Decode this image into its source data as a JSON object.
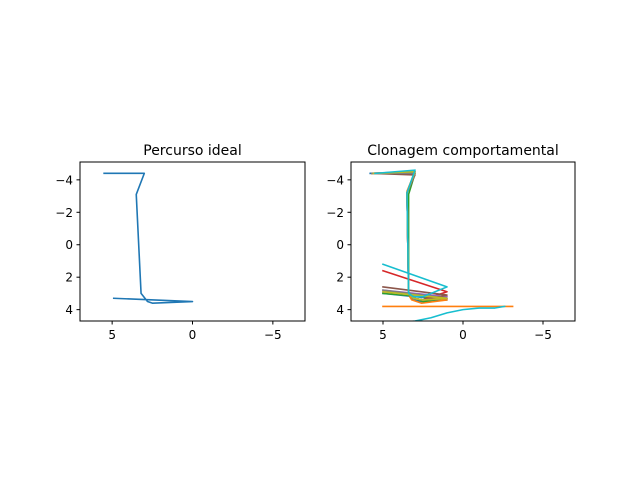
{
  "figure": {
    "background": "#ffffff"
  },
  "chart_data": [
    {
      "type": "line",
      "title": "Percurso ideal",
      "xlabel": "",
      "ylabel": "",
      "xlim": [
        7,
        -7
      ],
      "ylim": [
        4.7,
        -5.1
      ],
      "x_inverted": true,
      "y_inverted": true,
      "xticks": [
        5,
        0,
        -5
      ],
      "xtick_labels": [
        "5",
        "0",
        "−5"
      ],
      "yticks": [
        -4,
        -2,
        0,
        2,
        4
      ],
      "ytick_labels": [
        "−4",
        "−2",
        "0",
        "2",
        "4"
      ],
      "grid": false,
      "series": [
        {
          "color": "#1f77b4",
          "x": [
            5.5,
            3.0,
            3.5,
            3.2,
            2.8,
            2.5,
            0.0,
            4.9
          ],
          "y": [
            -4.4,
            -4.4,
            -3.1,
            3.0,
            3.5,
            3.6,
            3.5,
            3.3
          ]
        }
      ]
    },
    {
      "type": "line",
      "title": "Clonagem comportamental",
      "xlabel": "",
      "ylabel": "",
      "xlim": [
        7,
        -7
      ],
      "ylim": [
        4.7,
        -5.1
      ],
      "x_inverted": true,
      "y_inverted": true,
      "xticks": [
        5,
        0,
        -5
      ],
      "xtick_labels": [
        "5",
        "0",
        "−5"
      ],
      "yticks": [
        -4,
        -2,
        0,
        2,
        4
      ],
      "ytick_labels": [
        "−4",
        "−2",
        "0",
        "2",
        "4"
      ],
      "grid": false,
      "series": [
        {
          "color": "#1f77b4",
          "x": [
            5.8,
            3.0,
            3.5,
            3.4,
            3.1,
            2.6,
            1.0,
            5.0
          ],
          "y": [
            -4.4,
            -4.5,
            -3.2,
            3.0,
            3.4,
            3.5,
            3.4,
            3.0
          ]
        },
        {
          "color": "#ff7f0e",
          "x": [
            5.7,
            3.0,
            3.5,
            3.4,
            3.2,
            2.6,
            1.0,
            4.9
          ],
          "y": [
            -4.4,
            -4.5,
            -3.3,
            3.1,
            3.4,
            3.6,
            3.4,
            2.9
          ]
        },
        {
          "color": "#2ca02c",
          "x": [
            5.7,
            3.0,
            3.4,
            3.4,
            3.0,
            2.5,
            1.2,
            5.0
          ],
          "y": [
            -4.4,
            -4.4,
            -3.1,
            2.9,
            3.3,
            3.5,
            3.3,
            3.0
          ]
        },
        {
          "color": "#d62728",
          "x": [
            5.6,
            3.0,
            3.5,
            3.4,
            3.1,
            2.5,
            1.0,
            5.0
          ],
          "y": [
            -4.4,
            -4.5,
            -3.2,
            3.0,
            3.3,
            3.4,
            2.9,
            1.6
          ]
        },
        {
          "color": "#9467bd",
          "x": [
            5.6,
            3.0,
            3.5,
            3.4,
            3.1,
            2.5,
            1.0,
            5.0
          ],
          "y": [
            -4.4,
            -4.4,
            -3.2,
            3.0,
            3.3,
            3.4,
            3.2,
            2.8
          ]
        },
        {
          "color": "#8c564b",
          "x": [
            5.7,
            3.0,
            3.5,
            3.4,
            3.1,
            2.5,
            1.0,
            5.0
          ],
          "y": [
            -4.4,
            -4.3,
            -3.2,
            3.0,
            3.3,
            3.4,
            3.1,
            2.6
          ]
        },
        {
          "color": "#e377c2",
          "x": [
            5.6,
            3.0,
            3.5,
            3.4,
            3.1,
            2.5,
            1.0,
            5.0
          ],
          "y": [
            -4.4,
            -4.5,
            -3.2,
            3.0,
            3.3,
            3.4,
            3.3,
            2.9
          ]
        },
        {
          "color": "#7f7f7f",
          "x": [
            5.7,
            3.0,
            3.5,
            3.4,
            3.1,
            2.5,
            1.0,
            5.0
          ],
          "y": [
            -4.4,
            -4.4,
            -3.2,
            3.0,
            3.3,
            3.4,
            3.3,
            2.8
          ]
        },
        {
          "color": "#bcbd22",
          "x": [
            5.6,
            3.0,
            3.5,
            3.4,
            3.1,
            2.5,
            1.0,
            5.0
          ],
          "y": [
            -4.4,
            -4.5,
            -3.2,
            3.0,
            3.3,
            3.4,
            3.3,
            2.9
          ]
        },
        {
          "color": "#17becf",
          "x": [
            5.5,
            3.0,
            3.5,
            3.4,
            3.1,
            2.5,
            1.0,
            5.0
          ],
          "y": [
            -4.4,
            -4.6,
            -3.2,
            3.0,
            3.2,
            3.2,
            2.6,
            1.2
          ]
        },
        {
          "color": "#ff7f0e",
          "x": [
            5.0,
            3.0,
            2.0,
            1.0,
            0.0,
            -1.0,
            -2.0,
            -3.1
          ],
          "y": [
            3.8,
            3.8,
            3.8,
            3.8,
            3.8,
            3.8,
            3.8,
            3.8
          ]
        },
        {
          "color": "#17becf",
          "x": [
            4.0,
            3.0,
            2.0,
            1.0,
            0.0,
            -1.0,
            -2.0,
            -2.6
          ],
          "y": [
            4.8,
            4.7,
            4.5,
            4.2,
            4.0,
            3.9,
            3.9,
            3.8
          ]
        }
      ]
    }
  ]
}
